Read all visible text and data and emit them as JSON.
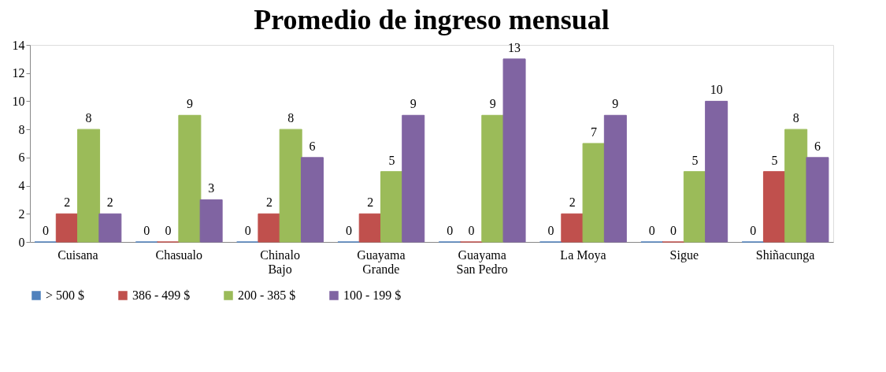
{
  "chart_data": {
    "type": "bar",
    "title": "Promedio de ingreso mensual",
    "categories": [
      "Cuisana",
      "Chasualo",
      "Chinalo Bajo",
      "Guayama Grande",
      "Guayama San Pedro",
      "La Moya",
      "Sigue",
      "Shiñacunga"
    ],
    "series": [
      {
        "name": "> 500 $",
        "color": "#4f81bd",
        "values": [
          0,
          0,
          0,
          0,
          0,
          0,
          0,
          0
        ]
      },
      {
        "name": "386 - 499 $",
        "color": "#c0504d",
        "values": [
          2,
          0,
          2,
          2,
          0,
          2,
          0,
          5
        ]
      },
      {
        "name": "200 - 385 $",
        "color": "#9bbb59",
        "values": [
          8,
          9,
          8,
          5,
          9,
          7,
          5,
          8
        ]
      },
      {
        "name": "100 - 199 $",
        "color": "#8064a2",
        "values": [
          2,
          3,
          6,
          9,
          13,
          9,
          10,
          6
        ]
      }
    ],
    "ylim": [
      0,
      14
    ],
    "yticks": [
      0,
      2,
      4,
      6,
      8,
      10,
      12,
      14
    ],
    "grid": false,
    "legend": "bottom",
    "data_labels": true
  }
}
